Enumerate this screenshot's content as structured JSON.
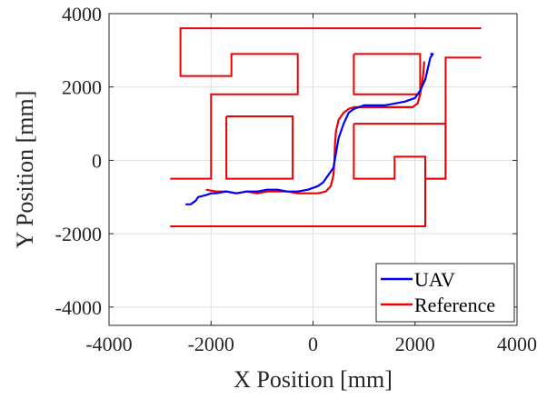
{
  "chart_data": {
    "type": "line",
    "xlabel": "X Position [mm]",
    "ylabel": "Y Position [mm]",
    "xlim": [
      -4000,
      4000
    ],
    "ylim": [
      -4500,
      4000
    ],
    "xticks": [
      -4000,
      -2000,
      0,
      2000,
      4000
    ],
    "yticks": [
      -4000,
      -2000,
      0,
      2000,
      4000
    ],
    "xtick_labels": [
      "-4000",
      "-2000",
      "0",
      "2000",
      "4000"
    ],
    "ytick_labels": [
      "-4000",
      "-2000",
      "0",
      "2000",
      "4000"
    ],
    "grid": true,
    "legend_position": "bottom-right",
    "walls": [
      [
        [
          -2800,
          -500
        ],
        [
          -2000,
          -500
        ],
        [
          -2000,
          1800
        ],
        [
          -300,
          1800
        ],
        [
          -300,
          2900
        ],
        [
          -1600,
          2900
        ],
        [
          -1600,
          2300
        ],
        [
          -2600,
          2300
        ],
        [
          -2600,
          3600
        ],
        [
          3300,
          3600
        ]
      ],
      [
        [
          3300,
          2800
        ],
        [
          2600,
          2800
        ],
        [
          2600,
          -500
        ],
        [
          2200,
          -500
        ],
        [
          2200,
          -1800
        ],
        [
          -2800,
          -1800
        ]
      ],
      [
        [
          -1700,
          1200
        ],
        [
          -400,
          1200
        ],
        [
          -400,
          -500
        ],
        [
          -1700,
          -500
        ],
        [
          -1700,
          1200
        ]
      ],
      [
        [
          800,
          2900
        ],
        [
          2100,
          2900
        ],
        [
          2100,
          1800
        ],
        [
          800,
          1800
        ],
        [
          800,
          2900
        ]
      ],
      [
        [
          800,
          1000
        ],
        [
          2600,
          1000
        ],
        [
          2600,
          -500
        ],
        [
          2200,
          -500
        ],
        [
          2200,
          100
        ],
        [
          1600,
          100
        ],
        [
          1600,
          -500
        ],
        [
          800,
          -500
        ],
        [
          800,
          1000
        ]
      ]
    ],
    "series": [
      {
        "name": "UAV",
        "color": "#0000ff",
        "x": [
          -2500,
          -2400,
          -2300,
          -2250,
          -2100,
          -2000,
          -1900,
          -1700,
          -1500,
          -1300,
          -1100,
          -900,
          -700,
          -500,
          -300,
          -100,
          100,
          200,
          300,
          400,
          450,
          500,
          600,
          700,
          800,
          1000,
          1200,
          1400,
          1600,
          1800,
          2000,
          2100,
          2200,
          2250,
          2300,
          2350,
          2300
        ],
        "y": [
          -1200,
          -1200,
          -1100,
          -1000,
          -950,
          -900,
          -900,
          -850,
          -900,
          -850,
          -850,
          -800,
          -800,
          -850,
          -850,
          -800,
          -700,
          -600,
          -400,
          -200,
          200,
          600,
          1000,
          1300,
          1400,
          1500,
          1500,
          1500,
          1550,
          1600,
          1700,
          1900,
          2200,
          2500,
          2800,
          2900,
          2900
        ]
      },
      {
        "name": "Reference",
        "color": "#ee0000",
        "x": [
          -2100,
          -1900,
          -1700,
          -1500,
          -1300,
          -1100,
          -900,
          -700,
          -500,
          -300,
          -100,
          100,
          250,
          350,
          400,
          420,
          430,
          450,
          500,
          600,
          700,
          800,
          1000,
          1200,
          1400,
          1600,
          1800,
          1950,
          2050,
          2100,
          2150,
          2170,
          2180
        ],
        "y": [
          -800,
          -850,
          -850,
          -900,
          -850,
          -900,
          -850,
          -850,
          -850,
          -900,
          -900,
          -900,
          -850,
          -700,
          -400,
          0,
          400,
          800,
          1100,
          1300,
          1400,
          1450,
          1450,
          1450,
          1450,
          1450,
          1450,
          1450,
          1550,
          1800,
          2200,
          2500,
          2700
        ]
      }
    ]
  }
}
